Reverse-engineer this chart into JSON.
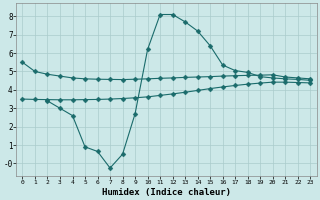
{
  "xlabel": "Humidex (Indice chaleur)",
  "ylabel": "",
  "background_color": "#cce8e8",
  "grid_color": "#aacccc",
  "line_color": "#1a6b6b",
  "xlim": [
    -0.5,
    23.5
  ],
  "ylim": [
    -0.7,
    8.7
  ],
  "xticks": [
    0,
    1,
    2,
    3,
    4,
    5,
    6,
    7,
    8,
    9,
    10,
    11,
    12,
    13,
    14,
    15,
    16,
    17,
    18,
    19,
    20,
    21,
    22,
    23
  ],
  "yticks": [
    0,
    1,
    2,
    3,
    4,
    5,
    6,
    7,
    8
  ],
  "ytick_labels": [
    "-0",
    "1",
    "2",
    "3",
    "4",
    "5",
    "6",
    "7",
    "8"
  ],
  "curve1_x": [
    0,
    1,
    2,
    3,
    4,
    5,
    6,
    7,
    8,
    9,
    10,
    11,
    12,
    13,
    14,
    15,
    16,
    17,
    18,
    19,
    20,
    21,
    22,
    23
  ],
  "curve1_y": [
    5.5,
    5.0,
    4.85,
    4.75,
    4.65,
    4.6,
    4.58,
    4.57,
    4.56,
    4.58,
    4.6,
    4.63,
    4.65,
    4.68,
    4.7,
    4.72,
    4.75,
    4.77,
    4.79,
    4.8,
    4.82,
    4.7,
    4.65,
    4.6
  ],
  "curve2_x": [
    0,
    1,
    2,
    3,
    4,
    5,
    6,
    7,
    8,
    9,
    10,
    11,
    12,
    13,
    14,
    15,
    16,
    17,
    18,
    19,
    20,
    21,
    22,
    23
  ],
  "curve2_y": [
    3.5,
    3.48,
    3.47,
    3.46,
    3.46,
    3.47,
    3.48,
    3.5,
    3.53,
    3.57,
    3.62,
    3.7,
    3.78,
    3.87,
    3.97,
    4.07,
    4.16,
    4.24,
    4.31,
    4.37,
    4.42,
    4.42,
    4.4,
    4.38
  ],
  "curve3_x": [
    2,
    3,
    4,
    5,
    6,
    7,
    8,
    9,
    10,
    11,
    12,
    13,
    14,
    15,
    16,
    17,
    18,
    19,
    20,
    21,
    22,
    23
  ],
  "curve3_y": [
    3.4,
    3.0,
    2.6,
    0.9,
    0.65,
    -0.25,
    0.5,
    2.7,
    6.2,
    8.1,
    8.1,
    7.7,
    7.2,
    6.4,
    5.35,
    5.05,
    4.95,
    4.72,
    4.65,
    4.6,
    4.57,
    4.52
  ],
  "marker": "D",
  "markersize": 2.5,
  "linewidth": 0.8
}
